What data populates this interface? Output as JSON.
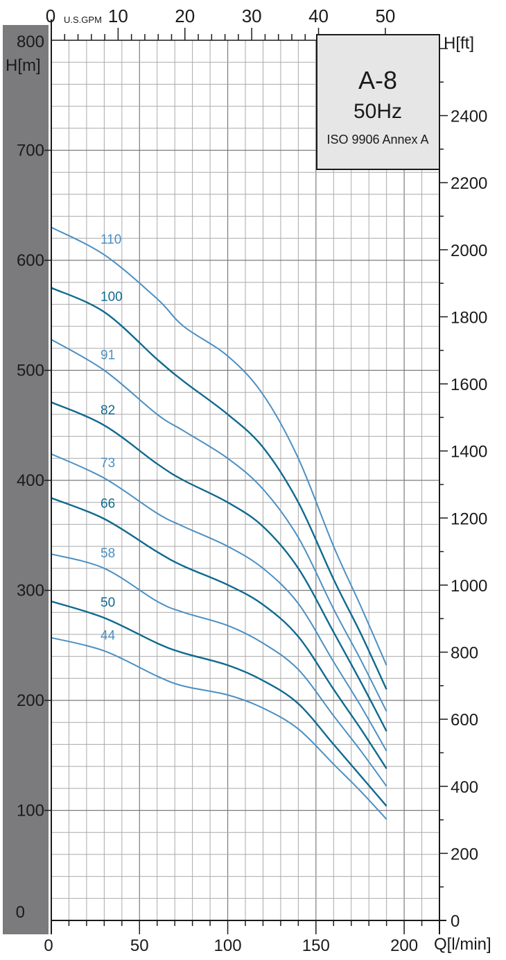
{
  "chart_data": {
    "type": "line",
    "title": "A-8",
    "subtitle": "50Hz",
    "standard": "ISO 9906 Annex A",
    "xlabel": "Q[l/min]",
    "ylabel": "H[m]",
    "x_top_label": "U.S.GPM",
    "y_right_label": "H[ft]",
    "xlim": [
      0,
      220
    ],
    "ylim": [
      0,
      800
    ],
    "x_top_lim": [
      0,
      58.1
    ],
    "y_right_lim": [
      0,
      2624.7
    ],
    "x_ticks": [
      0,
      50,
      100,
      150,
      200
    ],
    "y_ticks": [
      0,
      100,
      200,
      300,
      400,
      500,
      600,
      700,
      800
    ],
    "x_top_ticks": [
      0,
      10,
      20,
      30,
      40,
      50
    ],
    "y_right_ticks": [
      0,
      200,
      400,
      600,
      800,
      1000,
      1200,
      1400,
      1600,
      1800,
      2000,
      2200,
      2400
    ],
    "grid": true,
    "colors": {
      "light": "#4a8fc2",
      "dark": "#0f6a8f",
      "sidebar": "#7b7b7d",
      "box": "#e6e6e6"
    },
    "series": [
      {
        "name": "110",
        "tone": "light",
        "x": [
          0,
          30,
          60,
          75,
          100,
          120,
          140,
          160,
          175,
          190
        ],
        "y": [
          630,
          605,
          565,
          540,
          513,
          478,
          420,
          340,
          287,
          232
        ]
      },
      {
        "name": "100",
        "tone": "dark",
        "x": [
          0,
          30,
          60,
          75,
          100,
          120,
          140,
          160,
          175,
          190
        ],
        "y": [
          575,
          553,
          510,
          490,
          460,
          430,
          380,
          310,
          262,
          210
        ]
      },
      {
        "name": "91",
        "tone": "light",
        "x": [
          0,
          30,
          60,
          75,
          100,
          120,
          140,
          160,
          175,
          190
        ],
        "y": [
          528,
          500,
          460,
          445,
          420,
          392,
          348,
          283,
          238,
          190
        ]
      },
      {
        "name": "82",
        "tone": "dark",
        "x": [
          0,
          30,
          60,
          75,
          100,
          120,
          140,
          160,
          175,
          190
        ],
        "y": [
          471,
          450,
          415,
          400,
          380,
          358,
          320,
          262,
          218,
          172
        ]
      },
      {
        "name": "73",
        "tone": "light",
        "x": [
          0,
          30,
          60,
          75,
          100,
          120,
          140,
          160,
          175,
          190
        ],
        "y": [
          424,
          402,
          370,
          358,
          340,
          320,
          288,
          235,
          196,
          154
        ]
      },
      {
        "name": "66",
        "tone": "dark",
        "x": [
          0,
          30,
          60,
          75,
          100,
          120,
          140,
          160,
          175,
          190
        ],
        "y": [
          384,
          365,
          335,
          322,
          305,
          287,
          258,
          210,
          175,
          138
        ]
      },
      {
        "name": "58",
        "tone": "light",
        "x": [
          0,
          30,
          60,
          75,
          100,
          120,
          140,
          160,
          175,
          190
        ],
        "y": [
          333,
          320,
          290,
          280,
          268,
          252,
          228,
          186,
          155,
          122
        ]
      },
      {
        "name": "50",
        "tone": "dark",
        "x": [
          0,
          30,
          60,
          75,
          100,
          120,
          140,
          160,
          175,
          190
        ],
        "y": [
          290,
          275,
          252,
          243,
          232,
          218,
          197,
          160,
          132,
          104
        ]
      },
      {
        "name": "44",
        "tone": "light",
        "x": [
          0,
          30,
          60,
          75,
          100,
          120,
          140,
          160,
          175,
          190
        ],
        "y": [
          257,
          245,
          222,
          213,
          205,
          193,
          174,
          142,
          118,
          92
        ]
      }
    ]
  }
}
